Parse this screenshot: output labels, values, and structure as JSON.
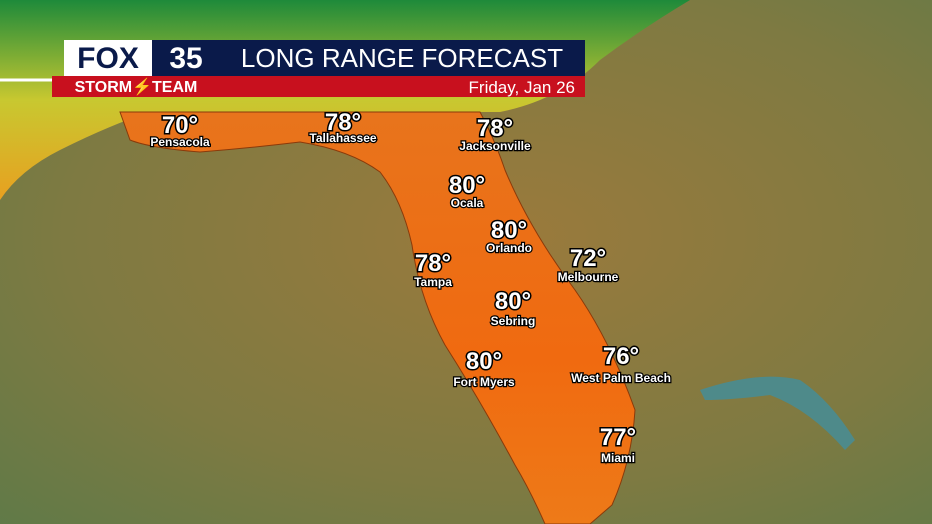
{
  "header": {
    "logo": "FOX",
    "channel": "35",
    "team": "STORM⚡TEAM",
    "title": "LONG RANGE FORECAST",
    "date": "Friday, Jan 26"
  },
  "cities": [
    {
      "temp": "70°",
      "name": "Pensacola"
    },
    {
      "temp": "78°",
      "name": "Tallahassee"
    },
    {
      "temp": "78°",
      "name": "Jacksonville"
    },
    {
      "temp": "80°",
      "name": "Ocala"
    },
    {
      "temp": "80°",
      "name": "Orlando"
    },
    {
      "temp": "72°",
      "name": "Melbourne"
    },
    {
      "temp": "78°",
      "name": "Tampa"
    },
    {
      "temp": "80°",
      "name": "Sebring"
    },
    {
      "temp": "80°",
      "name": "Fort Myers"
    },
    {
      "temp": "76°",
      "name": "West Palm Beach"
    },
    {
      "temp": "77°",
      "name": "Miami"
    }
  ]
}
